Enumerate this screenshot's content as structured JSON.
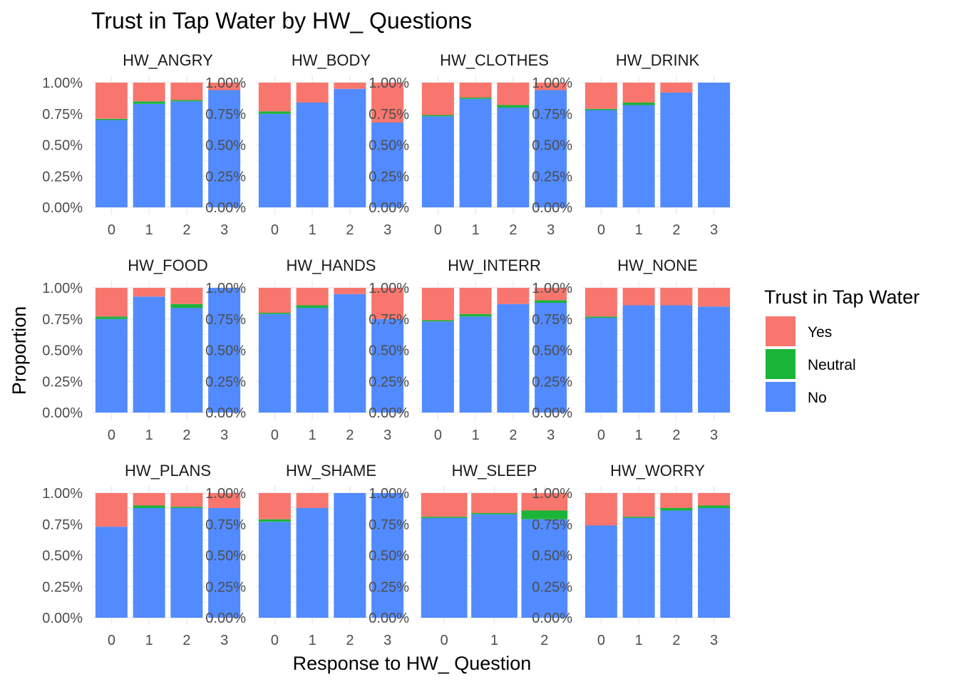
{
  "chart_data": {
    "type": "bar",
    "stacked": true,
    "title": "Trust in Tap Water by HW_ Questions",
    "xlabel": "Response to HW_ Question",
    "ylabel": "Proportion",
    "y_ticks": [
      "0.00%",
      "0.25%",
      "0.50%",
      "0.75%",
      "1.00%"
    ],
    "ylim": [
      0,
      1
    ],
    "grid": true,
    "legend": {
      "title": "Trust in Tap Water",
      "placement": "right",
      "entries": [
        {
          "label": "Yes",
          "color": "#F8766D"
        },
        {
          "label": "Neutral",
          "color": "#1BB53A"
        },
        {
          "label": "No",
          "color": "#528BFF"
        }
      ]
    },
    "panels": [
      {
        "name": "HW_ANGRY",
        "categories": [
          "0",
          "1",
          "2",
          "3"
        ],
        "no": [
          0.7,
          0.83,
          0.85,
          0.94
        ],
        "neutral": [
          0.01,
          0.02,
          0.01,
          0.0
        ]
      },
      {
        "name": "HW_BODY",
        "categories": [
          "0",
          "1",
          "2",
          "3"
        ],
        "no": [
          0.75,
          0.84,
          0.95,
          0.68
        ],
        "neutral": [
          0.02,
          0.0,
          0.0,
          0.0
        ]
      },
      {
        "name": "HW_CLOTHES",
        "categories": [
          "0",
          "1",
          "2",
          "3"
        ],
        "no": [
          0.73,
          0.87,
          0.8,
          0.94
        ],
        "neutral": [
          0.01,
          0.01,
          0.02,
          0.0
        ]
      },
      {
        "name": "HW_DRINK",
        "categories": [
          "0",
          "1",
          "2",
          "3"
        ],
        "no": [
          0.78,
          0.82,
          0.92,
          1.0
        ],
        "neutral": [
          0.01,
          0.02,
          0.0,
          0.0
        ]
      },
      {
        "name": "HW_FOOD",
        "categories": [
          "0",
          "1",
          "2",
          "3"
        ],
        "no": [
          0.75,
          0.93,
          0.84,
          1.0
        ],
        "neutral": [
          0.02,
          0.0,
          0.03,
          0.0
        ]
      },
      {
        "name": "HW_HANDS",
        "categories": [
          "0",
          "1",
          "2",
          "3"
        ],
        "no": [
          0.79,
          0.84,
          0.95,
          0.75
        ],
        "neutral": [
          0.01,
          0.02,
          0.0,
          0.0
        ]
      },
      {
        "name": "HW_INTERR",
        "categories": [
          "0",
          "1",
          "2",
          "3"
        ],
        "no": [
          0.73,
          0.77,
          0.87,
          0.88
        ],
        "neutral": [
          0.01,
          0.02,
          0.0,
          0.02
        ]
      },
      {
        "name": "HW_NONE",
        "categories": [
          "0",
          "1",
          "2",
          "3"
        ],
        "no": [
          0.76,
          0.86,
          0.86,
          0.85
        ],
        "neutral": [
          0.01,
          0.0,
          0.0,
          0.0
        ]
      },
      {
        "name": "HW_PLANS",
        "categories": [
          "0",
          "1",
          "2",
          "3"
        ],
        "no": [
          0.73,
          0.88,
          0.88,
          0.88
        ],
        "neutral": [
          0.0,
          0.02,
          0.01,
          0.0
        ]
      },
      {
        "name": "HW_SHAME",
        "categories": [
          "0",
          "1",
          "2",
          "3"
        ],
        "no": [
          0.77,
          0.88,
          1.0,
          1.0
        ],
        "neutral": [
          0.02,
          0.0,
          0.0,
          0.0
        ]
      },
      {
        "name": "HW_SLEEP",
        "categories": [
          "0",
          "1",
          "2"
        ],
        "no": [
          0.8,
          0.83,
          0.79
        ],
        "neutral": [
          0.01,
          0.01,
          0.07
        ]
      },
      {
        "name": "HW_WORRY",
        "categories": [
          "0",
          "1",
          "2",
          "3"
        ],
        "no": [
          0.74,
          0.8,
          0.86,
          0.88
        ],
        "neutral": [
          0.0,
          0.01,
          0.02,
          0.02
        ]
      }
    ]
  }
}
